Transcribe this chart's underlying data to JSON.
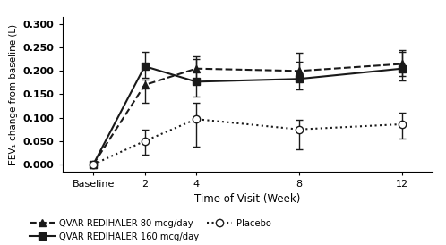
{
  "xlabel": "Time of Visit (Week)",
  "ylabel": "FEV₁ change from baseline (L)",
  "x_labels": [
    "Baseline",
    "2",
    "4",
    "8",
    "12"
  ],
  "x_positions": [
    0,
    2,
    4,
    8,
    12
  ],
  "ylim": [
    -0.015,
    0.315
  ],
  "yticks": [
    0.0,
    0.05,
    0.1,
    0.15,
    0.2,
    0.25,
    0.3
  ],
  "series_80": {
    "label": "QVAR REDIHALER 80 mcg/day",
    "y": [
      0.0,
      0.17,
      0.205,
      0.2,
      0.215
    ],
    "yerr_lo": [
      0.005,
      0.038,
      0.025,
      0.022,
      0.025
    ],
    "yerr_hi": [
      0.005,
      0.012,
      0.02,
      0.02,
      0.025
    ],
    "color": "#1a1a1a",
    "linestyle": "--",
    "marker": "^",
    "markersize": 6
  },
  "series_160": {
    "label": "QVAR REDIHALER 160 mcg/day",
    "y": [
      0.0,
      0.21,
      0.177,
      0.183,
      0.205
    ],
    "yerr_lo": [
      0.005,
      0.025,
      0.032,
      0.022,
      0.025
    ],
    "yerr_hi": [
      0.005,
      0.03,
      0.055,
      0.055,
      0.04
    ],
    "color": "#1a1a1a",
    "linestyle": "-",
    "marker": "s",
    "markersize": 6
  },
  "series_placebo": {
    "label": "Placebo",
    "y": [
      0.0,
      0.05,
      0.097,
      0.075,
      0.086
    ],
    "yerr_lo": [
      0.003,
      0.03,
      0.058,
      0.042,
      0.03
    ],
    "yerr_hi": [
      0.003,
      0.025,
      0.035,
      0.02,
      0.025
    ],
    "color": "#1a1a1a",
    "linestyle": ":",
    "marker": "o",
    "markersize": 6,
    "markerfacecolor": "white"
  },
  "background_color": "#ffffff",
  "figsize": [
    4.98,
    2.74
  ],
  "dpi": 100
}
